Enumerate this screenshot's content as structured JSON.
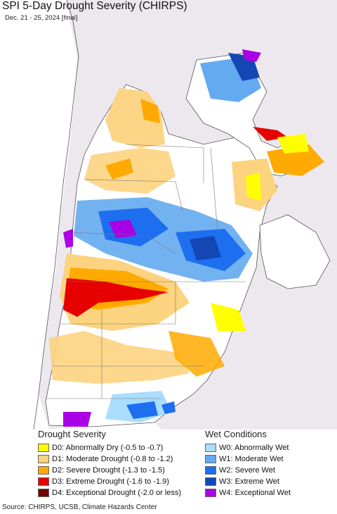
{
  "header": {
    "title": "SPI 5-Day Drought Severity (CHIRPS)",
    "subtitle": "Dec. 21 - 25, 2024 [final]"
  },
  "colors": {
    "ocean": "#ffffff",
    "land_outside": "#ece8ee",
    "border": "#555555",
    "d0": "#ffff00",
    "d1": "#fcd37f",
    "d2": "#ffaa00",
    "d3": "#e60000",
    "d4": "#730000",
    "w0": "#aaddff",
    "w1": "#64aaf0",
    "w2": "#1e6ef0",
    "w3": "#1446b4",
    "w4": "#aa00e6"
  },
  "legend": {
    "drought": {
      "heading": "Drought Severity",
      "items": [
        {
          "label": "D0: Abnormally Dry (-0.5 to -0.7)",
          "color": "#ffff00"
        },
        {
          "label": "D1: Moderate Drought (-0.8 to -1.2)",
          "color": "#fcd37f"
        },
        {
          "label": "D2: Severe Drought (-1.3 to -1.5)",
          "color": "#ffaa00"
        },
        {
          "label": "D3: Extreme Drought (-1.6 to -1.9)",
          "color": "#e60000"
        },
        {
          "label": "D4: Exceptional Drought (-2.0 or less)",
          "color": "#730000"
        }
      ]
    },
    "wet": {
      "heading": "Wet Conditions",
      "items": [
        {
          "label": "W0: Abnormally Wet",
          "color": "#aaddff"
        },
        {
          "label": "W1: Moderate Wet",
          "color": "#64aaf0"
        },
        {
          "label": "W2: Severe Wet",
          "color": "#1e6ef0"
        },
        {
          "label": "W3: Extreme Wet",
          "color": "#1446b4"
        },
        {
          "label": "W4: Exceptional Wet",
          "color": "#aa00e6"
        }
      ]
    }
  },
  "footer": {
    "source": "Source: CHIRPS, UCSB, Climate Hazards Center"
  }
}
